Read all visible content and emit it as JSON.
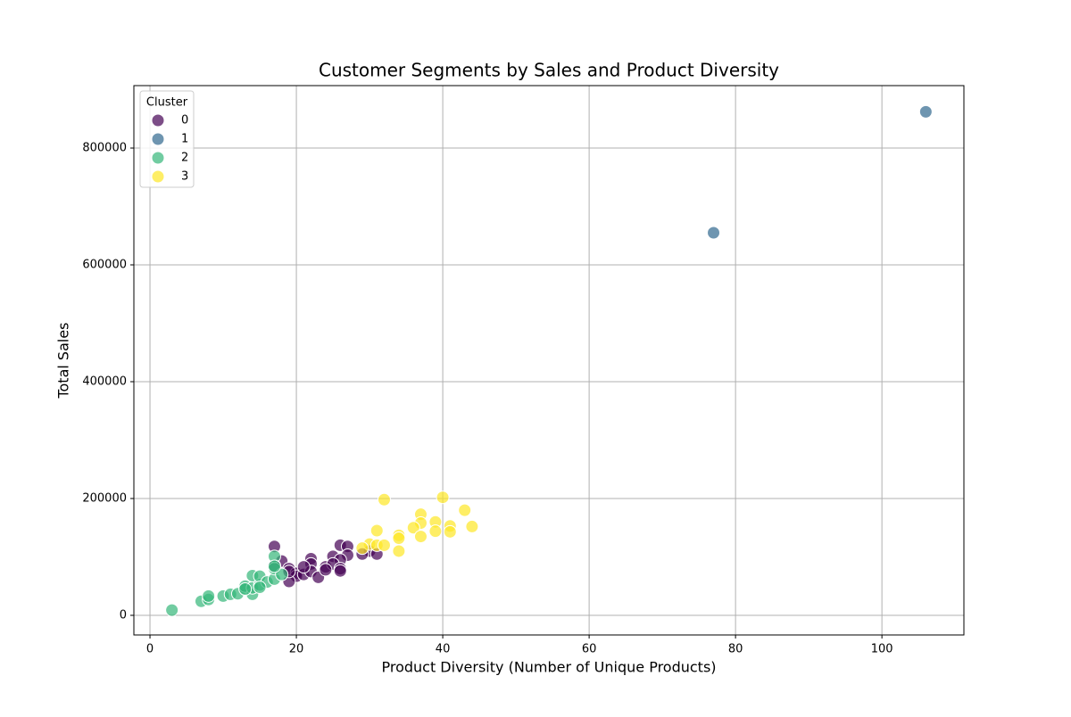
{
  "chart_data": {
    "type": "scatter",
    "title": "Customer Segments by Sales and Product Diversity",
    "x_label": "Product Diversity (Number of Unique Products)",
    "y_label": "Total Sales",
    "legend_title": "Cluster",
    "legend_position": "upper-left",
    "grid": true,
    "xlim": [
      -2.2,
      111.2
    ],
    "ylim": [
      -33600,
      906900
    ],
    "xticks": [
      0,
      20,
      40,
      60,
      80,
      100
    ],
    "yticks": [
      0,
      200000,
      400000,
      600000,
      800000
    ],
    "series": [
      {
        "name": "0",
        "color": "#440154",
        "x": [
          17,
          18,
          26,
          27,
          22,
          25,
          27,
          26,
          30,
          31,
          29,
          22,
          24,
          25,
          26,
          26,
          19,
          20,
          20,
          21,
          22,
          21,
          19,
          23,
          24,
          19,
          17
        ],
        "values": [
          118000,
          93000,
          120000,
          118000,
          97000,
          101000,
          103000,
          95000,
          110000,
          105000,
          105000,
          88000,
          83000,
          88000,
          80000,
          76000,
          80000,
          72000,
          67000,
          70000,
          75000,
          83000,
          58000,
          65000,
          78000,
          75000,
          85000
        ]
      },
      {
        "name": "1",
        "color": "#31688e",
        "x": [
          77,
          106
        ],
        "values": [
          655000,
          862000
        ]
      },
      {
        "name": "2",
        "color": "#35b779",
        "x": [
          3,
          7,
          8,
          8,
          10,
          11,
          12,
          13,
          13,
          14,
          14,
          14,
          15,
          15,
          16,
          17,
          17,
          17,
          18,
          15,
          13,
          17
        ],
        "values": [
          9000,
          24000,
          27000,
          33000,
          33000,
          36000,
          37000,
          46000,
          50000,
          36000,
          47000,
          68000,
          52000,
          67000,
          57000,
          62000,
          80000,
          101000,
          70000,
          48000,
          45000,
          84000
        ]
      },
      {
        "name": "3",
        "color": "#fde725",
        "x": [
          32,
          40,
          43,
          37,
          37,
          39,
          36,
          44,
          41,
          39,
          41,
          37,
          34,
          34,
          31,
          30,
          31,
          32,
          29,
          34
        ],
        "values": [
          198000,
          202000,
          180000,
          173000,
          158000,
          160000,
          150000,
          152000,
          153000,
          144000,
          143000,
          135000,
          137000,
          132000,
          145000,
          122000,
          120000,
          120000,
          115000,
          110000
        ]
      }
    ]
  }
}
